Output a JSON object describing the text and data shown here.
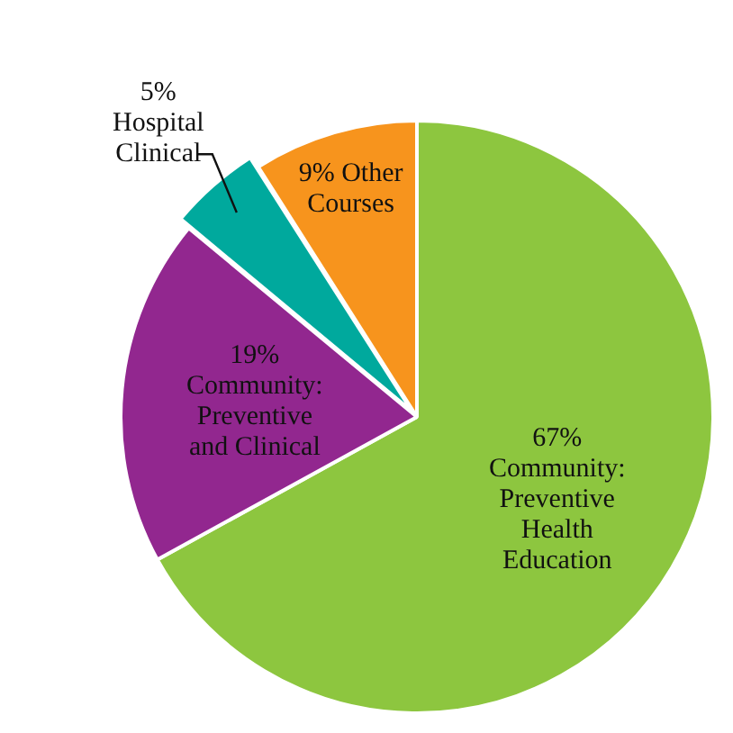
{
  "chart_data": {
    "type": "pie",
    "categories": [
      "Community: Preventive Health Education",
      "Community: Preventive and Clinical",
      "Hospital Clinical",
      "Other Courses"
    ],
    "values": [
      67,
      19,
      5,
      9
    ],
    "colors": [
      "#8dc63f",
      "#92278f",
      "#00a99d",
      "#f7941d"
    ],
    "value_labels": [
      "67%",
      "19%",
      "5%",
      "9%"
    ],
    "legend": false
  }
}
